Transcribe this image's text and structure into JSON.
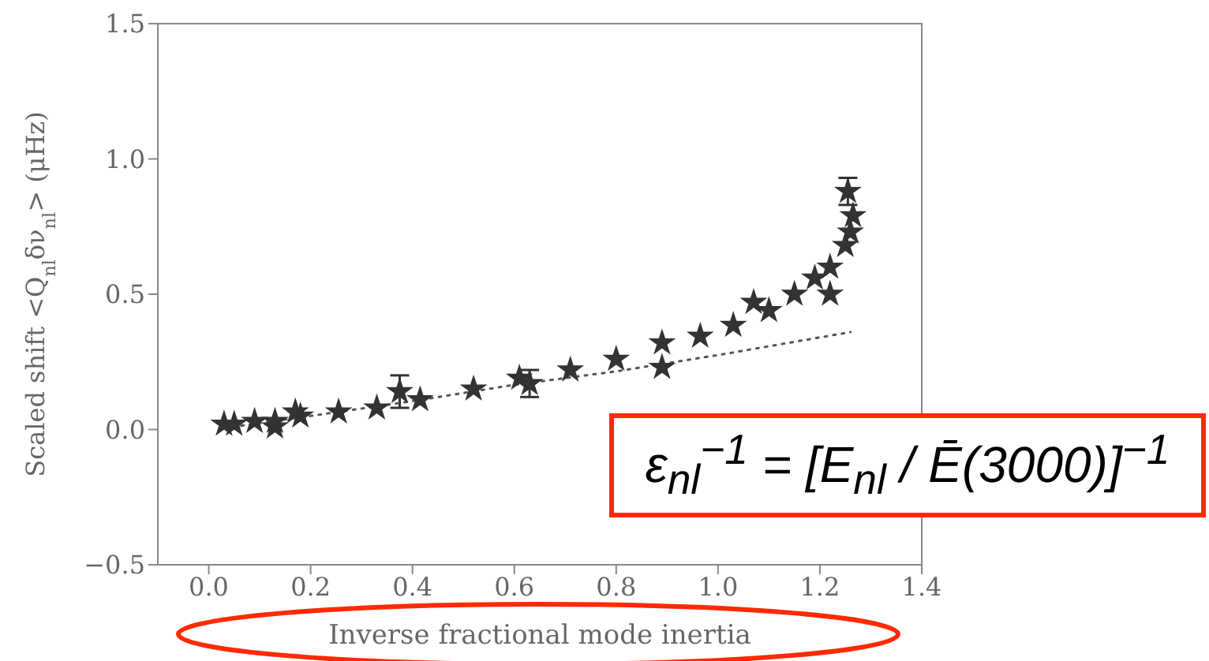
{
  "chart_data": {
    "type": "scatter",
    "ylabel": "Scaled shift <Q$_{nl}$δν$_{nl}$> (μHz)",
    "xlabel": "Inverse fractional mode inertia",
    "xlim": [
      -0.1,
      1.4
    ],
    "ylim": [
      -0.5,
      1.5
    ],
    "xticks": [
      {
        "value": 0,
        "label": "0.0"
      },
      0.2,
      0.4,
      0.6,
      0.8,
      {
        "value": 1,
        "label": "1.0"
      },
      1.2,
      1.4
    ],
    "yticks": [
      {
        "value": -0.5,
        "label": "−0.5"
      },
      {
        "value": 0,
        "label": "0.0"
      },
      0.5,
      {
        "value": 1,
        "label": "1.0"
      },
      1.5
    ],
    "grid": false,
    "annotations": [
      "ε$_{nl}$$^{−1}$ = [E$_{nl}$ / Ē(3000)]$^{−1}$"
    ],
    "series": [
      {
        "color": "#333333",
        "marker": "star",
        "x": [
          0.03,
          0.05,
          0.09,
          0.13,
          0.13,
          0.17,
          0.18,
          0.255,
          0.33,
          0.375,
          0.415,
          0.52,
          0.61,
          0.63,
          0.71,
          0.8,
          0.89,
          0.89,
          0.965,
          1.03,
          1.07,
          1.1,
          1.15,
          1.19,
          1.22,
          1.22,
          1.25,
          1.26,
          1.265,
          1.255
        ],
        "values": [
          0.02,
          0.02,
          0.03,
          0.03,
          0.01,
          0.065,
          0.05,
          0.065,
          0.08,
          0.14,
          0.11,
          0.15,
          0.19,
          0.17,
          0.22,
          0.26,
          0.32,
          0.23,
          0.345,
          0.385,
          0.47,
          0.44,
          0.5,
          0.56,
          0.6,
          0.5,
          0.68,
          0.73,
          0.79,
          0.88
        ],
        "errors": [
          null,
          null,
          null,
          null,
          null,
          null,
          null,
          null,
          null,
          0.06,
          null,
          null,
          null,
          0.05,
          null,
          null,
          null,
          null,
          null,
          null,
          null,
          null,
          null,
          null,
          null,
          null,
          null,
          null,
          null,
          0.05
        ]
      },
      {
        "type": "line",
        "color": "#555555",
        "line_style": "dotted",
        "marker": "none",
        "x": [
          0.03,
          0.2,
          0.4,
          0.6,
          0.8,
          1.0,
          1.26
        ],
        "values": [
          0.005,
          0.05,
          0.105,
          0.165,
          0.215,
          0.275,
          0.36
        ]
      }
    ]
  }
}
